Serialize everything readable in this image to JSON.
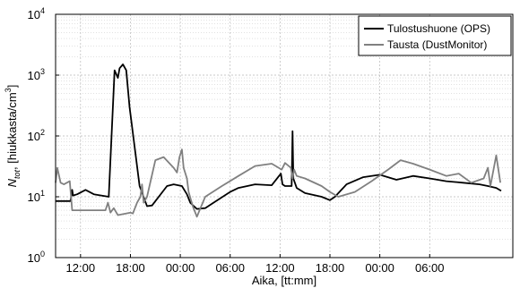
{
  "chart_data": {
    "type": "line",
    "xlabel": "Aika, [tt:mm]",
    "ylabel": {
      "main": "N",
      "sub": "tot",
      "rest": ", [hiukkasta/cm",
      "sup": "3",
      "end": "]"
    },
    "yscale": "log",
    "ylim": [
      1,
      10000
    ],
    "xlim": [
      0,
      55
    ],
    "grid": true,
    "legend_position": "top-right",
    "x_ticks": [
      {
        "x": 3.0,
        "label": "12:00"
      },
      {
        "x": 9.0,
        "label": "18:00"
      },
      {
        "x": 15.0,
        "label": "00:00"
      },
      {
        "x": 21.0,
        "label": "06:00"
      },
      {
        "x": 27.0,
        "label": "12:00"
      },
      {
        "x": 33.0,
        "label": "18:00"
      },
      {
        "x": 39.0,
        "label": "00:00"
      },
      {
        "x": 45.0,
        "label": "06:00"
      }
    ],
    "y_ticks": [
      {
        "exp": 0,
        "label": "10",
        "sup": "0"
      },
      {
        "exp": 1,
        "label": "10",
        "sup": "1"
      },
      {
        "exp": 2,
        "label": "10",
        "sup": "2"
      },
      {
        "exp": 3,
        "label": "10",
        "sup": "3"
      },
      {
        "exp": 4,
        "label": "10",
        "sup": "4"
      }
    ],
    "series": [
      {
        "name": "Tulostushuone (OPS)",
        "color": "#000000",
        "x": [
          0,
          1.8,
          2.0,
          2.1,
          2.6,
          3.6,
          4.6,
          6.4,
          7.1,
          7.5,
          7.7,
          8.1,
          8.5,
          8.9,
          10.1,
          11.0,
          11.6,
          13.4,
          14.2,
          15.2,
          15.8,
          16.2,
          16.4,
          17.0,
          18.0,
          19.0,
          21.0,
          22.0,
          24.0,
          26.0,
          27.1,
          27.3,
          27.6,
          28.4,
          28.5,
          28.6,
          29.0,
          30.0,
          32.0,
          33.0,
          33.6,
          35.0,
          37.0,
          39.0,
          41.0,
          43.0,
          45.0,
          47.0,
          49.0,
          51.0,
          52.0,
          53.0,
          53.6
        ],
        "y": [
          8.5,
          8.5,
          13,
          10.5,
          11,
          13,
          11,
          10,
          1200,
          900,
          1300,
          1500,
          1200,
          300,
          15,
          7,
          7.2,
          15,
          16,
          15,
          11,
          8,
          7.5,
          6.3,
          6.5,
          8,
          12,
          14,
          16,
          15.5,
          24,
          16,
          15,
          15,
          120,
          20,
          14,
          11.5,
          10,
          8.8,
          10,
          16,
          21,
          23,
          19,
          22,
          20,
          18,
          17,
          16,
          15,
          14,
          12.5
        ]
      },
      {
        "name": "Tausta (DustMonitor)",
        "color": "#808080",
        "x": [
          0,
          0.2,
          0.6,
          1.0,
          1.7,
          2.0,
          6.0,
          6.3,
          6.6,
          7.0,
          7.5,
          9.0,
          9.3,
          9.8,
          10.2,
          10.4,
          10.6,
          11.0,
          12.0,
          13.0,
          14.2,
          14.6,
          14.9,
          15.2,
          15.4,
          15.8,
          16.0,
          16.5,
          17.0,
          18.0,
          20.0,
          22.0,
          24.0,
          26.0,
          27.2,
          27.6,
          28.3,
          28.5,
          28.7,
          29.0,
          30.0,
          32.0,
          33.0,
          34.0,
          36.0,
          38.0,
          40.0,
          41.5,
          43.0,
          45.0,
          47.0,
          48.5,
          50.0,
          51.5,
          52.0,
          52.3,
          53.0,
          53.5
        ],
        "y": [
          17,
          30,
          17,
          16,
          18,
          6,
          6,
          8,
          5.5,
          6.5,
          5,
          5.5,
          5.3,
          8,
          10,
          16,
          8,
          10,
          40,
          45,
          30,
          25,
          45,
          60,
          30,
          20,
          12,
          7,
          4.7,
          10,
          15,
          22,
          32,
          35,
          28,
          36,
          30,
          20,
          28,
          22,
          20,
          15,
          12,
          10,
          12,
          18,
          28,
          40,
          35,
          28,
          22,
          24,
          17,
          20,
          30,
          15,
          48,
          17
        ]
      }
    ]
  }
}
